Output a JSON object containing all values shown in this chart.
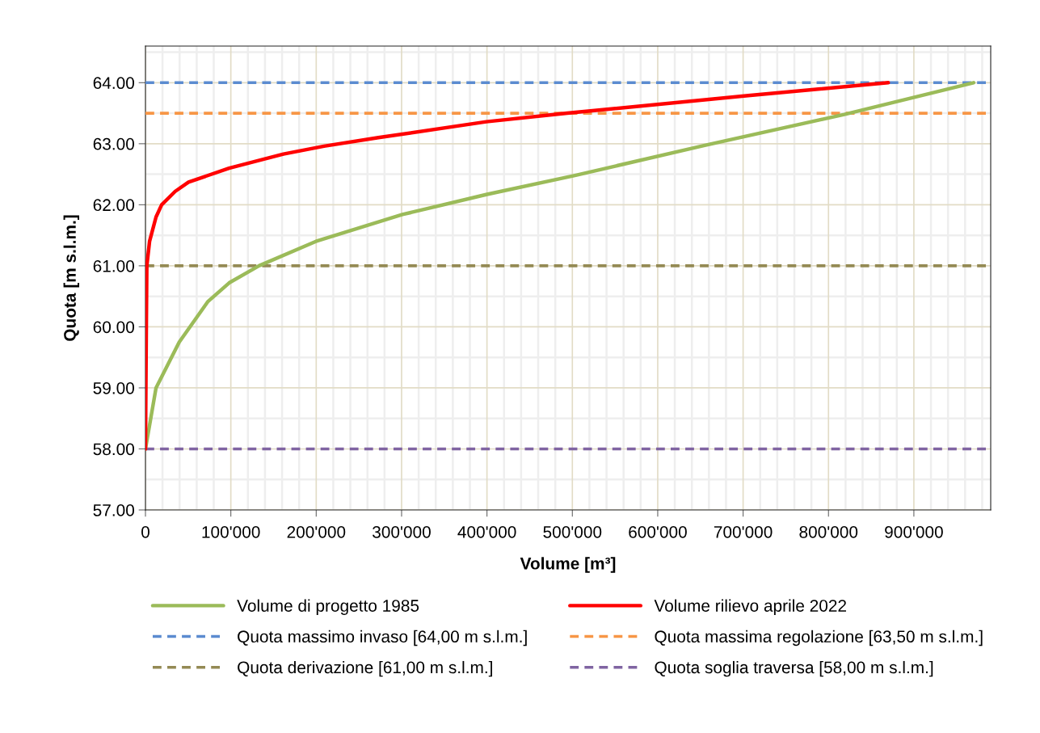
{
  "chart_data": {
    "type": "line",
    "xlabel": "Volume [m³]",
    "ylabel": "Quota [m s.l.m.]",
    "xlim": [
      0,
      990000
    ],
    "ylim": [
      57,
      64.6
    ],
    "xticks": [
      0,
      {
        "value": 100000,
        "label": "100'000"
      },
      {
        "value": 200000,
        "label": "200'000"
      },
      {
        "value": 300000,
        "label": "300'000"
      },
      {
        "value": 400000,
        "label": "400'000"
      },
      {
        "value": 500000,
        "label": "500'000"
      },
      {
        "value": 600000,
        "label": "600'000"
      },
      {
        "value": 700000,
        "label": "700'000"
      },
      {
        "value": 800000,
        "label": "800'000"
      },
      {
        "value": 900000,
        "label": "900'000"
      }
    ],
    "yticks": [
      {
        "value": 57,
        "label": "57.00"
      },
      {
        "value": 58,
        "label": "58.00"
      },
      {
        "value": 59,
        "label": "59.00"
      },
      {
        "value": 60,
        "label": "60.00"
      },
      {
        "value": 61,
        "label": "61.00"
      },
      {
        "value": 62,
        "label": "62.00"
      },
      {
        "value": 63,
        "label": "63.00"
      },
      {
        "value": 64,
        "label": "64.00"
      }
    ],
    "grid": true,
    "legend": "bottom",
    "marker": "none",
    "line_style": "solid",
    "series": [
      {
        "name": "Volume di progetto 1985",
        "color": "#9bbb59",
        "x": [
          0,
          12400,
          39600,
          72900,
          98000,
          133000,
          199600,
          301000,
          400000,
          503000,
          654000,
          818500,
          970000
        ],
        "values": [
          58.0,
          59.0,
          59.75,
          60.41,
          60.72,
          61.0,
          61.4,
          61.84,
          62.17,
          62.48,
          62.97,
          63.48,
          64.0
        ]
      },
      {
        "name": "Volume rilievo aprile 2022",
        "color": "#ff0000",
        "x": [
          0,
          1000,
          1600,
          4800,
          12400,
          19000,
          34900,
          50400,
          97900,
          161600,
          209100,
          272800,
          399200,
          494000,
          706000,
          870000
        ],
        "values": [
          58.0,
          60.0,
          61.0,
          61.4,
          61.8,
          62.0,
          62.22,
          62.37,
          62.6,
          62.83,
          62.96,
          63.1,
          63.36,
          63.5,
          63.79,
          64.0
        ]
      }
    ],
    "ref_lines": [
      {
        "axis": "y",
        "value": 64,
        "label": "Quota massimo invaso [64,00 m s.l.m.]",
        "color": "#5b8bd0",
        "line_style": "dashed"
      },
      {
        "axis": "y",
        "value": 63.5,
        "label": "Quota massima regolazione [63,50 m s.l.m.]",
        "color": "#f79646",
        "line_style": "dashed"
      },
      {
        "axis": "y",
        "value": 61,
        "label": "Quota derivazione [61,00 m s.l.m.]",
        "color": "#948a54",
        "line_style": "dashed"
      },
      {
        "axis": "y",
        "value": 58,
        "label": "Quota soglia traversa [58,00 m s.l.m.]",
        "color": "#8064a2",
        "line_style": "dashed"
      }
    ]
  }
}
